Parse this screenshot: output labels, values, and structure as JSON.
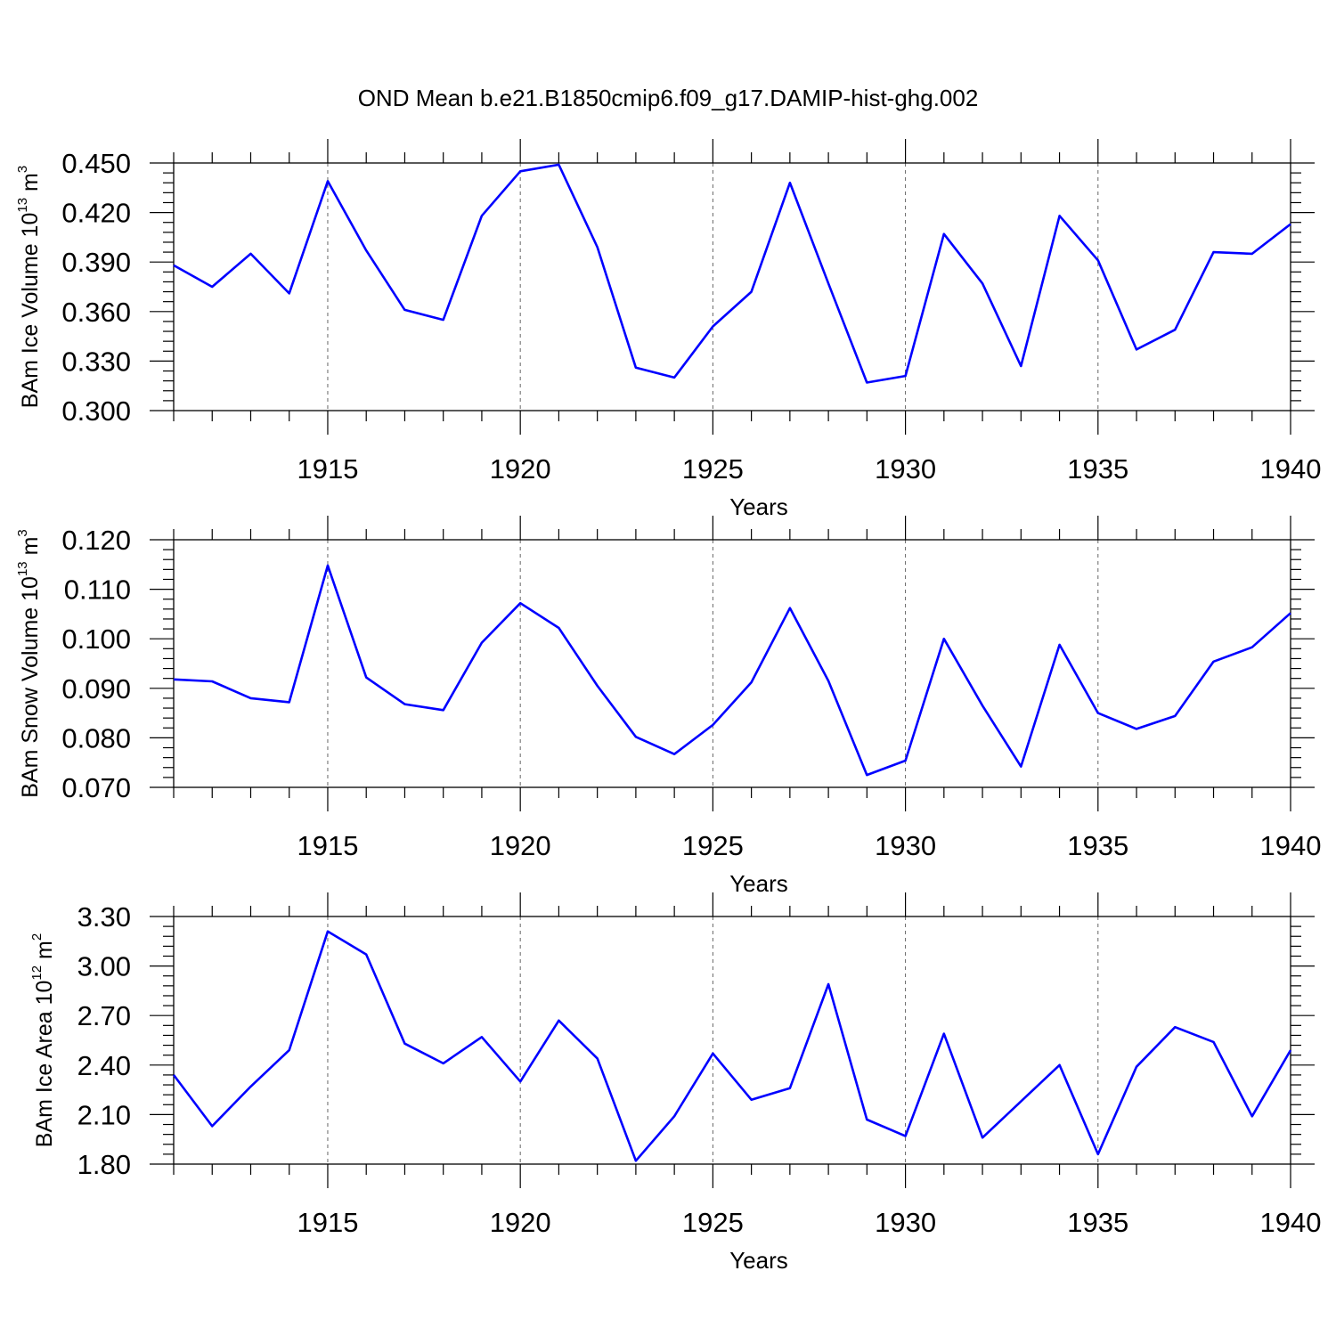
{
  "title": "OND Mean b.e21.B1850cmip6.f09_g17.DAMIP-hist-ghg.002",
  "colors": {
    "line": "#0000ff",
    "axis": "#000000",
    "grid": "#666666"
  },
  "chart_data": [
    {
      "type": "line",
      "xlabel": "Years",
      "ylabel": {
        "base": "BAm Ice Volume 10",
        "exponent": "13",
        "unit": " m",
        "unit_exponent": "3"
      },
      "xlim": [
        1911,
        1940
      ],
      "ylim": [
        0.3,
        0.45
      ],
      "xticks": [
        1915,
        1920,
        1925,
        1930,
        1935,
        1940
      ],
      "yticks": [
        "0.300",
        "0.330",
        "0.360",
        "0.390",
        "0.420",
        "0.450"
      ],
      "x": [
        1911,
        1912,
        1913,
        1914,
        1915,
        1916,
        1917,
        1918,
        1919,
        1920,
        1921,
        1922,
        1923,
        1924,
        1925,
        1926,
        1927,
        1928,
        1929,
        1930,
        1931,
        1932,
        1933,
        1934,
        1935,
        1936,
        1937,
        1938,
        1939,
        1940
      ],
      "series": [
        {
          "values": [
            0.388,
            0.375,
            0.395,
            0.371,
            0.439,
            0.397,
            0.361,
            0.355,
            0.418,
            0.445,
            0.449,
            0.399,
            0.326,
            0.32,
            0.351,
            0.372,
            0.438,
            0.377,
            0.317,
            0.321,
            0.407,
            0.377,
            0.327,
            0.418,
            0.391,
            0.337,
            0.349,
            0.396,
            0.395,
            0.413
          ]
        }
      ]
    },
    {
      "type": "line",
      "xlabel": "Years",
      "ylabel": {
        "base": "BAm Snow Volume 10",
        "exponent": "13",
        "unit": " m",
        "unit_exponent": "3"
      },
      "xlim": [
        1911,
        1940
      ],
      "ylim": [
        0.07,
        0.12
      ],
      "xticks": [
        1915,
        1920,
        1925,
        1930,
        1935,
        1940
      ],
      "yticks": [
        "0.070",
        "0.080",
        "0.090",
        "0.100",
        "0.110",
        "0.120"
      ],
      "x": [
        1911,
        1912,
        1913,
        1914,
        1915,
        1916,
        1917,
        1918,
        1919,
        1920,
        1921,
        1922,
        1923,
        1924,
        1925,
        1926,
        1927,
        1928,
        1929,
        1930,
        1931,
        1932,
        1933,
        1934,
        1935,
        1936,
        1937,
        1938,
        1939,
        1940
      ],
      "series": [
        {
          "values": [
            0.0918,
            0.0914,
            0.088,
            0.0872,
            0.1148,
            0.0922,
            0.0868,
            0.0856,
            0.0992,
            0.1072,
            0.1022,
            0.0905,
            0.0802,
            0.0767,
            0.0826,
            0.0912,
            0.1062,
            0.0915,
            0.0725,
            0.0754,
            0.1,
            0.0865,
            0.0742,
            0.0988,
            0.085,
            0.0818,
            0.0844,
            0.0954,
            0.0983,
            0.1052
          ]
        }
      ]
    },
    {
      "type": "line",
      "xlabel": "Years",
      "ylabel": {
        "base": "BAm Ice Area 10",
        "exponent": "12",
        "unit": " m",
        "unit_exponent": "2"
      },
      "xlim": [
        1911,
        1940
      ],
      "ylim": [
        1.8,
        3.3
      ],
      "xticks": [
        1915,
        1920,
        1925,
        1930,
        1935,
        1940
      ],
      "yticks": [
        "1.80",
        "2.10",
        "2.40",
        "2.70",
        "3.00",
        "3.30"
      ],
      "x": [
        1911,
        1912,
        1913,
        1914,
        1915,
        1916,
        1917,
        1918,
        1919,
        1920,
        1921,
        1922,
        1923,
        1924,
        1925,
        1926,
        1927,
        1928,
        1929,
        1930,
        1931,
        1932,
        1933,
        1934,
        1935,
        1936,
        1937,
        1938,
        1939,
        1940
      ],
      "series": [
        {
          "values": [
            2.34,
            2.03,
            2.27,
            2.49,
            3.21,
            3.07,
            2.53,
            2.41,
            2.57,
            2.3,
            2.67,
            2.44,
            1.82,
            2.09,
            2.47,
            2.19,
            2.26,
            2.89,
            2.07,
            1.97,
            2.59,
            1.96,
            2.18,
            2.4,
            1.86,
            2.39,
            2.63,
            2.54,
            2.09,
            2.49
          ]
        }
      ]
    }
  ]
}
